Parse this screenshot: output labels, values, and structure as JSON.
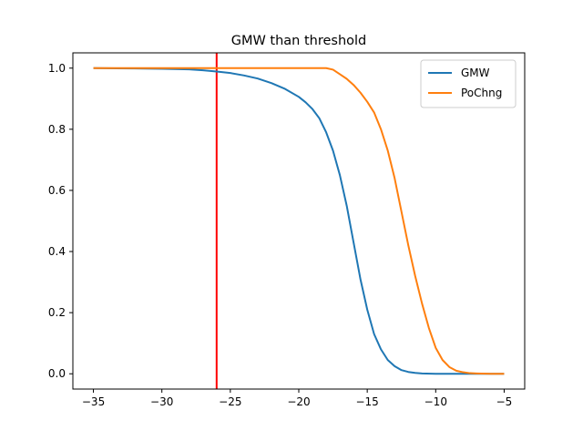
{
  "chart_data": {
    "type": "line",
    "title": "GMW than threshold",
    "xlabel": "",
    "ylabel": "",
    "xlim": [
      -36.5,
      -3.5
    ],
    "ylim": [
      -0.05,
      1.05
    ],
    "xticks": [
      -35,
      -30,
      -25,
      -20,
      -15,
      -10,
      -5
    ],
    "xtick_labels": [
      "−35",
      "−30",
      "−25",
      "−20",
      "−15",
      "−10",
      "−5"
    ],
    "yticks": [
      0.0,
      0.2,
      0.4,
      0.6,
      0.8,
      1.0
    ],
    "ytick_labels": [
      "0.0",
      "0.2",
      "0.4",
      "0.6",
      "0.8",
      "1.0"
    ],
    "grid": false,
    "legend_position": "top-right",
    "series": [
      {
        "name": "GMW",
        "color": "#1f77b4",
        "x": [
          -35,
          -32,
          -30,
          -28,
          -27,
          -26,
          -25,
          -24,
          -23,
          -22,
          -21,
          -20,
          -19.5,
          -19,
          -18.5,
          -18,
          -17.5,
          -17,
          -16.5,
          -16,
          -15.5,
          -15,
          -14.5,
          -14,
          -13.5,
          -13,
          -12.5,
          -12,
          -11.5,
          -11,
          -10,
          -8,
          -5
        ],
        "y": [
          1.0,
          0.999,
          0.998,
          0.996,
          0.993,
          0.989,
          0.984,
          0.976,
          0.966,
          0.951,
          0.932,
          0.906,
          0.888,
          0.866,
          0.836,
          0.79,
          0.73,
          0.65,
          0.55,
          0.43,
          0.31,
          0.21,
          0.13,
          0.08,
          0.045,
          0.025,
          0.012,
          0.006,
          0.003,
          0.001,
          0.0,
          0.0,
          0.0
        ]
      },
      {
        "name": "PoChng",
        "color": "#ff7f0e",
        "x": [
          -35,
          -30,
          -25,
          -20,
          -18,
          -17.5,
          -17,
          -16.5,
          -16,
          -15.5,
          -15,
          -14.5,
          -14,
          -13.5,
          -13,
          -12.5,
          -12,
          -11.5,
          -11,
          -10.5,
          -10,
          -9.5,
          -9,
          -8.5,
          -8,
          -7.5,
          -7,
          -6,
          -5
        ],
        "y": [
          1.0,
          1.0,
          1.0,
          1.0,
          1.0,
          0.995,
          0.98,
          0.965,
          0.945,
          0.92,
          0.89,
          0.855,
          0.8,
          0.73,
          0.64,
          0.53,
          0.42,
          0.32,
          0.23,
          0.15,
          0.085,
          0.045,
          0.022,
          0.01,
          0.005,
          0.002,
          0.001,
          0.0,
          0.0
        ]
      }
    ],
    "reference_lines": [
      {
        "orientation": "vertical",
        "x": -26,
        "color": "#ff0000"
      }
    ]
  }
}
